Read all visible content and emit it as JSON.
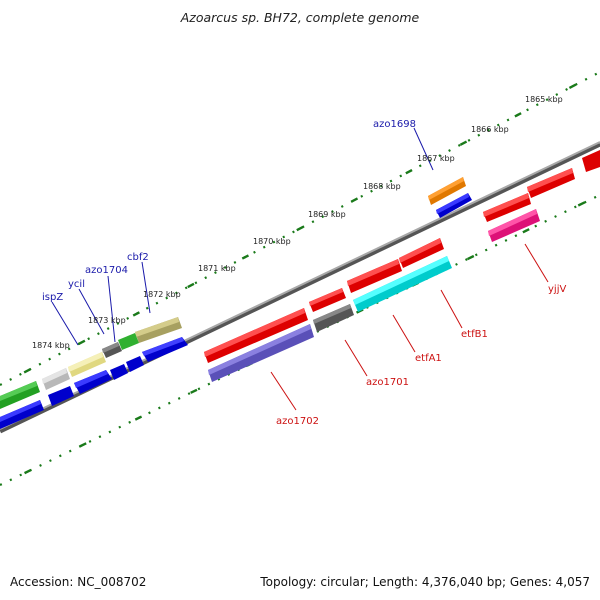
{
  "title": "Azoarcus sp. BH72, complete genome",
  "accession": "Accession: NC_008702",
  "topology": "Topology: circular; Length: 4,376,040 bp; Genes: 4,057",
  "scale_labels": [
    "1865 kbp",
    "1866 kbp",
    "1867 kbp",
    "1868 kbp",
    "1869 kbp",
    "1870 kbp",
    "1871 kbp",
    "1872 kbp",
    "1873 kbp",
    "1874 kbp"
  ],
  "colors": {
    "backbone": "#8a8a8a",
    "tick": "#1a7a1a",
    "label_forward": "#1a1aaa",
    "label_reverse": "#cc1111"
  },
  "gene_labels": {
    "forward": [
      "azo1698",
      "cbf2",
      "azo1704",
      "ycil",
      "ispZ"
    ],
    "reverse": [
      "yjjV",
      "etfB1",
      "etfA1",
      "azo1701",
      "azo1702"
    ]
  }
}
